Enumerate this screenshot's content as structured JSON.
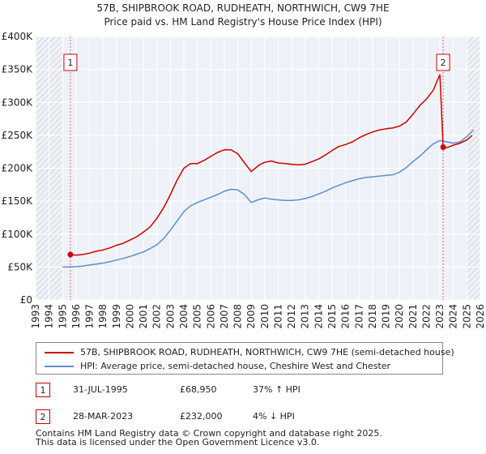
{
  "chart_data": {
    "type": "line",
    "title": "57B, SHIPBROOK ROAD, RUDHEATH, NORTHWICH, CW9 7HE",
    "subtitle": "Price paid vs. HM Land Registry's House Price Index (HPI)",
    "xlim": [
      1993,
      2026
    ],
    "ylim": [
      0,
      400000
    ],
    "x_ticks": [
      1993,
      1994,
      1995,
      1996,
      1997,
      1998,
      1999,
      2000,
      2001,
      2002,
      2003,
      2004,
      2005,
      2006,
      2007,
      2008,
      2009,
      2010,
      2011,
      2012,
      2013,
      2014,
      2015,
      2016,
      2017,
      2018,
      2019,
      2020,
      2021,
      2022,
      2023,
      2024,
      2025,
      2026
    ],
    "y_ticks": [
      0,
      50000,
      100000,
      150000,
      200000,
      250000,
      300000,
      350000,
      400000
    ],
    "y_tick_labels": [
      "£0",
      "£50K",
      "£100K",
      "£150K",
      "£200K",
      "£250K",
      "£300K",
      "£350K",
      "£400K"
    ],
    "hatch_regions": [
      [
        1993,
        1995.0
      ],
      [
        2025.0,
        2026
      ]
    ],
    "series": [
      {
        "name": "57B, SHIPBROOK ROAD, RUDHEATH, NORTHWICH, CW9 7HE (semi-detached house)",
        "color": "#cc0000",
        "x": [
          1995.58,
          1996,
          1996.5,
          1997,
          1997.5,
          1998,
          1998.5,
          1999,
          1999.5,
          2000,
          2000.5,
          2001,
          2001.5,
          2002,
          2002.5,
          2003,
          2003.5,
          2004,
          2004.5,
          2005,
          2005.5,
          2006,
          2006.5,
          2007,
          2007.5,
          2008,
          2008.5,
          2009,
          2009.3,
          2009.6,
          2010,
          2010.5,
          2011,
          2011.5,
          2012,
          2012.5,
          2013,
          2013.5,
          2014,
          2014.5,
          2015,
          2015.5,
          2016,
          2016.5,
          2017,
          2017.5,
          2018,
          2018.5,
          2019,
          2019.5,
          2020,
          2020.5,
          2021,
          2021.5,
          2022,
          2022.5,
          2022.8,
          2023.0,
          2023.24,
          2023.5,
          2024,
          2024.5,
          2025,
          2025.4
        ],
        "values": [
          68950,
          68000,
          69000,
          71000,
          74000,
          76000,
          79000,
          83000,
          86000,
          91000,
          96000,
          103000,
          111000,
          124000,
          140000,
          160000,
          182000,
          200000,
          207000,
          207000,
          212000,
          218000,
          224000,
          228000,
          228000,
          222000,
          208000,
          195000,
          200000,
          205000,
          209000,
          211000,
          208000,
          207000,
          206000,
          205000,
          206000,
          210000,
          214000,
          220000,
          227000,
          233000,
          236000,
          240000,
          246000,
          251000,
          255000,
          258000,
          260000,
          261000,
          264000,
          270000,
          282000,
          295000,
          305000,
          318000,
          333000,
          342000,
          232000,
          231000,
          235000,
          238000,
          243000,
          250000
        ]
      },
      {
        "name": "HPI: Average price, semi-detached house, Cheshire West and Chester",
        "color": "#5b8fd0",
        "x": [
          1995,
          1995.5,
          1996,
          1996.5,
          1997,
          1997.5,
          1998,
          1998.5,
          1999,
          1999.5,
          2000,
          2000.5,
          2001,
          2001.5,
          2002,
          2002.5,
          2003,
          2003.5,
          2004,
          2004.5,
          2005,
          2005.5,
          2006,
          2006.5,
          2007,
          2007.5,
          2008,
          2008.5,
          2009,
          2009.5,
          2010,
          2010.5,
          2011,
          2011.5,
          2012,
          2012.5,
          2013,
          2013.5,
          2014,
          2014.5,
          2015,
          2015.5,
          2016,
          2016.5,
          2017,
          2017.5,
          2018,
          2018.5,
          2019,
          2019.5,
          2020,
          2020.5,
          2021,
          2021.5,
          2022,
          2022.5,
          2023,
          2023.5,
          2024,
          2024.5,
          2025,
          2025.5
        ],
        "values": [
          50000,
          50200,
          50500,
          51500,
          53000,
          54500,
          56000,
          58000,
          60500,
          63000,
          66000,
          69500,
          73000,
          78000,
          84000,
          93000,
          106000,
          120000,
          134000,
          143000,
          148000,
          152000,
          156000,
          160000,
          165000,
          168000,
          167000,
          160000,
          148000,
          152000,
          155000,
          153000,
          152000,
          151000,
          151000,
          152000,
          154000,
          157000,
          161000,
          165000,
          170000,
          174000,
          178000,
          181000,
          184000,
          186000,
          187000,
          188000,
          189000,
          190000,
          194000,
          201000,
          210000,
          218000,
          228000,
          237000,
          242000,
          240000,
          238000,
          240000,
          248000,
          258000
        ]
      }
    ],
    "transactions": [
      {
        "label": "1",
        "x": 1995.58,
        "value": 68950
      },
      {
        "label": "2",
        "x": 2023.24,
        "value": 232000
      }
    ]
  },
  "legend": {
    "items": [
      {
        "label": "57B, SHIPBROOK ROAD, RUDHEATH, NORTHWICH, CW9 7HE (semi-detached house)",
        "color": "#cc0000"
      },
      {
        "label": "HPI: Average price, semi-detached house, Cheshire West and Chester",
        "color": "#5b8fd0"
      }
    ]
  },
  "transactions_table": [
    {
      "num": "1",
      "date": "31-JUL-1995",
      "price": "£68,950",
      "hpi": "37% ↑ HPI"
    },
    {
      "num": "2",
      "date": "28-MAR-2023",
      "price": "£232,000",
      "hpi": "4% ↓ HPI"
    }
  ],
  "footer": {
    "line1": "Contains HM Land Registry data © Crown copyright and database right 2025.",
    "line2": "This data is licensed under the Open Government Licence v3.0."
  }
}
